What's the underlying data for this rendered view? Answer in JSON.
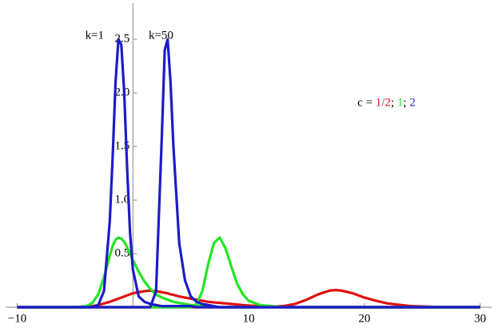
{
  "chart_data": {
    "type": "line",
    "x": [
      -10,
      -5,
      -4,
      -3.5,
      -3,
      -2.5,
      -2,
      -1.75,
      -1.5,
      -1.25,
      -1,
      -0.75,
      -0.5,
      -0.25,
      0,
      0.5,
      1,
      1.5,
      2,
      2.5,
      2.75,
      3,
      3.25,
      3.5,
      4,
      4.5,
      5,
      5.5,
      6,
      6.5,
      7,
      7.5,
      8,
      8.5,
      9,
      9.5,
      10,
      11,
      12,
      13,
      14,
      15,
      16,
      17,
      17.5,
      18,
      19,
      20,
      21,
      22,
      24,
      26,
      30
    ],
    "series": [
      {
        "color": "#e01010",
        "values": [
          0,
          0,
          0.005,
          0.01,
          0.02,
          0.035,
          0.05,
          0.06,
          0.07,
          0.08,
          0.09,
          0.1,
          0.11,
          0.12,
          0.13,
          0.14,
          0.15,
          0.155,
          0.15,
          0.14,
          0.135,
          0.13,
          0.12,
          0.115,
          0.1,
          0.09,
          0.08,
          0.07,
          0.06,
          0.05,
          0.045,
          0.04,
          0.035,
          0.03,
          0.025,
          0.02,
          0.015,
          0.01,
          0.005,
          0.003,
          0,
          0,
          0,
          0,
          0,
          0,
          0,
          0,
          0,
          0,
          0,
          0,
          0
        ]
      },
      {
        "color": "#e01010",
        "values": [
          0,
          0,
          0,
          0,
          0,
          0,
          0,
          0,
          0,
          0,
          0,
          0,
          0,
          0,
          0,
          0,
          0,
          0,
          0,
          0,
          0,
          0,
          0,
          0,
          0,
          0,
          0,
          0,
          0,
          0,
          0,
          0,
          0,
          0,
          0,
          0,
          0,
          0,
          0.005,
          0.01,
          0.03,
          0.07,
          0.12,
          0.155,
          0.16,
          0.155,
          0.13,
          0.09,
          0.06,
          0.035,
          0.01,
          0.003,
          0
        ]
      },
      {
        "color": "#22e622",
        "values": [
          0,
          0,
          0.01,
          0.04,
          0.12,
          0.28,
          0.48,
          0.57,
          0.63,
          0.65,
          0.64,
          0.61,
          0.56,
          0.5,
          0.44,
          0.33,
          0.24,
          0.17,
          0.12,
          0.09,
          0.08,
          0.07,
          0.06,
          0.05,
          0.04,
          0.03,
          0.02,
          0.015,
          0.01,
          0.01,
          0.005,
          0,
          0,
          0,
          0,
          0,
          0,
          0,
          0,
          0,
          0,
          0,
          0,
          0,
          0,
          0,
          0,
          0,
          0,
          0,
          0,
          0,
          0
        ]
      },
      {
        "color": "#22e622",
        "values": [
          0,
          0,
          0,
          0,
          0,
          0,
          0,
          0,
          0,
          0,
          0,
          0,
          0,
          0,
          0,
          0,
          0,
          0,
          0,
          0,
          0,
          0,
          0,
          0,
          0,
          0,
          0,
          0.03,
          0.15,
          0.4,
          0.6,
          0.65,
          0.55,
          0.38,
          0.22,
          0.12,
          0.06,
          0.02,
          0.01,
          0,
          0,
          0,
          0,
          0,
          0,
          0,
          0,
          0,
          0,
          0,
          0,
          0,
          0
        ]
      },
      {
        "color": "#1c1cc8",
        "values": [
          0,
          0,
          0,
          0,
          0.02,
          0.15,
          0.8,
          1.4,
          2.1,
          2.5,
          2.45,
          2.0,
          1.3,
          0.7,
          0.35,
          0.1,
          0.05,
          0.03,
          0.02,
          0.01,
          0.01,
          0.01,
          0.01,
          0.01,
          0.01,
          0.01,
          0.01,
          0,
          0,
          0,
          0,
          0,
          0,
          0,
          0,
          0,
          0,
          0,
          0,
          0,
          0,
          0,
          0,
          0,
          0,
          0,
          0,
          0,
          0,
          0,
          0,
          0,
          0
        ]
      },
      {
        "color": "#1c1cc8",
        "values": [
          0,
          0,
          0,
          0,
          0,
          0,
          0,
          0,
          0,
          0,
          0,
          0,
          0,
          0,
          0,
          0,
          0,
          0,
          0.15,
          1.6,
          2.4,
          2.5,
          2.1,
          1.5,
          0.6,
          0.25,
          0.1,
          0.05,
          0.03,
          0.02,
          0.01,
          0,
          0,
          0,
          0,
          0,
          0,
          0,
          0,
          0,
          0,
          0,
          0,
          0,
          0,
          0,
          0,
          0,
          0,
          0,
          0,
          0,
          0
        ]
      }
    ],
    "xlim": [
      -11,
      30.3
    ],
    "ylim": [
      0,
      2.8
    ],
    "xticks": [
      {
        "value": -10,
        "label": "−10"
      },
      10,
      20,
      30
    ],
    "yticks": [
      0.5,
      {
        "value": 1,
        "label": "1.0"
      },
      1.5,
      {
        "value": 2,
        "label": "2.0"
      },
      2.5
    ],
    "annotations": [
      {
        "text": "k=1",
        "x": -2.5,
        "y": 2.53
      },
      {
        "text": "k=50",
        "x": 3.5,
        "y": 2.53
      }
    ],
    "note": {
      "x": 19.4,
      "y": 1.9,
      "parts": [
        "c = ",
        "1/2",
        "; ",
        "1",
        "; ",
        "2"
      ],
      "colors": [
        "#000000",
        "#e01010",
        "#000000",
        "#22e622",
        "#000000",
        "#1c1cc8"
      ]
    }
  }
}
